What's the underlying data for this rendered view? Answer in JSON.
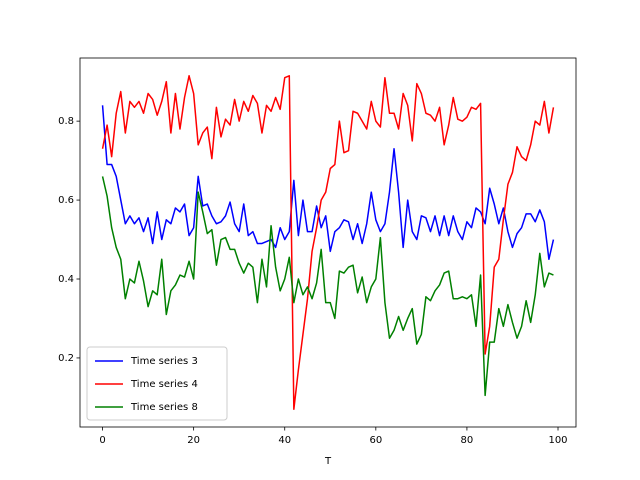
{
  "chart_data": {
    "type": "line",
    "xlabel": "T",
    "x": [
      0,
      1,
      2,
      3,
      4,
      5,
      6,
      7,
      8,
      9,
      10,
      11,
      12,
      13,
      14,
      15,
      16,
      17,
      18,
      19,
      20,
      21,
      22,
      23,
      24,
      25,
      26,
      27,
      28,
      29,
      30,
      31,
      32,
      33,
      34,
      35,
      36,
      37,
      38,
      39,
      40,
      41,
      42,
      43,
      44,
      45,
      46,
      47,
      48,
      49,
      50,
      51,
      52,
      53,
      54,
      55,
      56,
      57,
      58,
      59,
      60,
      61,
      62,
      63,
      64,
      65,
      66,
      67,
      68,
      69,
      70,
      71,
      72,
      73,
      74,
      75,
      76,
      77,
      78,
      79,
      80,
      81,
      82,
      83,
      84,
      85,
      86,
      87,
      88,
      89,
      90,
      91,
      92,
      93,
      94,
      95,
      96,
      97,
      98,
      99
    ],
    "series": [
      {
        "name": "Time series 3",
        "color": "#0000ff",
        "values": [
          0.84,
          0.69,
          0.69,
          0.66,
          0.6,
          0.54,
          0.56,
          0.54,
          0.555,
          0.52,
          0.555,
          0.49,
          0.57,
          0.5,
          0.55,
          0.54,
          0.58,
          0.57,
          0.59,
          0.51,
          0.53,
          0.66,
          0.585,
          0.59,
          0.56,
          0.54,
          0.545,
          0.56,
          0.595,
          0.54,
          0.52,
          0.59,
          0.51,
          0.52,
          0.49,
          0.49,
          0.495,
          0.5,
          0.48,
          0.53,
          0.5,
          0.52,
          0.65,
          0.51,
          0.6,
          0.52,
          0.52,
          0.585,
          0.53,
          0.56,
          0.47,
          0.52,
          0.53,
          0.55,
          0.545,
          0.5,
          0.54,
          0.49,
          0.54,
          0.62,
          0.55,
          0.52,
          0.54,
          0.62,
          0.73,
          0.62,
          0.48,
          0.6,
          0.52,
          0.5,
          0.56,
          0.555,
          0.52,
          0.56,
          0.51,
          0.56,
          0.51,
          0.56,
          0.52,
          0.5,
          0.545,
          0.53,
          0.58,
          0.57,
          0.54,
          0.63,
          0.59,
          0.54,
          0.58,
          0.52,
          0.48,
          0.515,
          0.53,
          0.565,
          0.565,
          0.545,
          0.575,
          0.545,
          0.45,
          0.5
        ]
      },
      {
        "name": "Time series 4",
        "color": "#ff0000",
        "values": [
          0.73,
          0.79,
          0.71,
          0.82,
          0.875,
          0.77,
          0.85,
          0.835,
          0.85,
          0.82,
          0.87,
          0.855,
          0.815,
          0.85,
          0.9,
          0.77,
          0.87,
          0.78,
          0.86,
          0.915,
          0.87,
          0.74,
          0.77,
          0.785,
          0.705,
          0.835,
          0.76,
          0.805,
          0.79,
          0.855,
          0.8,
          0.85,
          0.825,
          0.865,
          0.845,
          0.77,
          0.84,
          0.825,
          0.86,
          0.83,
          0.91,
          0.915,
          0.07,
          0.17,
          0.26,
          0.35,
          0.47,
          0.53,
          0.6,
          0.62,
          0.68,
          0.69,
          0.8,
          0.72,
          0.725,
          0.825,
          0.82,
          0.8,
          0.78,
          0.85,
          0.8,
          0.785,
          0.91,
          0.82,
          0.82,
          0.78,
          0.87,
          0.84,
          0.75,
          0.895,
          0.87,
          0.82,
          0.815,
          0.8,
          0.835,
          0.74,
          0.79,
          0.86,
          0.805,
          0.8,
          0.81,
          0.835,
          0.83,
          0.845,
          0.21,
          0.28,
          0.43,
          0.45,
          0.55,
          0.64,
          0.67,
          0.735,
          0.71,
          0.7,
          0.74,
          0.8,
          0.79,
          0.85,
          0.77,
          0.835
        ]
      },
      {
        "name": "Time series 8",
        "color": "#008000",
        "values": [
          0.66,
          0.61,
          0.53,
          0.48,
          0.45,
          0.35,
          0.4,
          0.39,
          0.445,
          0.395,
          0.33,
          0.37,
          0.36,
          0.45,
          0.31,
          0.37,
          0.385,
          0.41,
          0.405,
          0.445,
          0.4,
          0.62,
          0.57,
          0.515,
          0.525,
          0.435,
          0.5,
          0.505,
          0.475,
          0.475,
          0.44,
          0.415,
          0.44,
          0.43,
          0.34,
          0.45,
          0.38,
          0.535,
          0.43,
          0.37,
          0.4,
          0.455,
          0.34,
          0.4,
          0.36,
          0.38,
          0.35,
          0.39,
          0.475,
          0.34,
          0.34,
          0.3,
          0.42,
          0.415,
          0.43,
          0.435,
          0.365,
          0.405,
          0.34,
          0.38,
          0.4,
          0.505,
          0.34,
          0.25,
          0.27,
          0.305,
          0.27,
          0.3,
          0.325,
          0.235,
          0.26,
          0.355,
          0.345,
          0.37,
          0.385,
          0.415,
          0.42,
          0.35,
          0.35,
          0.355,
          0.35,
          0.36,
          0.28,
          0.41,
          0.105,
          0.24,
          0.24,
          0.325,
          0.28,
          0.335,
          0.29,
          0.25,
          0.28,
          0.345,
          0.29,
          0.36,
          0.465,
          0.38,
          0.415,
          0.41
        ]
      }
    ],
    "xlim": [
      -4.95,
      103.95
    ],
    "xticks": [
      0,
      20,
      40,
      60,
      80,
      100
    ],
    "ylim": [
      0.025,
      0.96
    ],
    "yticks": [
      0.2,
      0.4,
      0.6,
      0.8
    ],
    "legend": "lower left"
  }
}
